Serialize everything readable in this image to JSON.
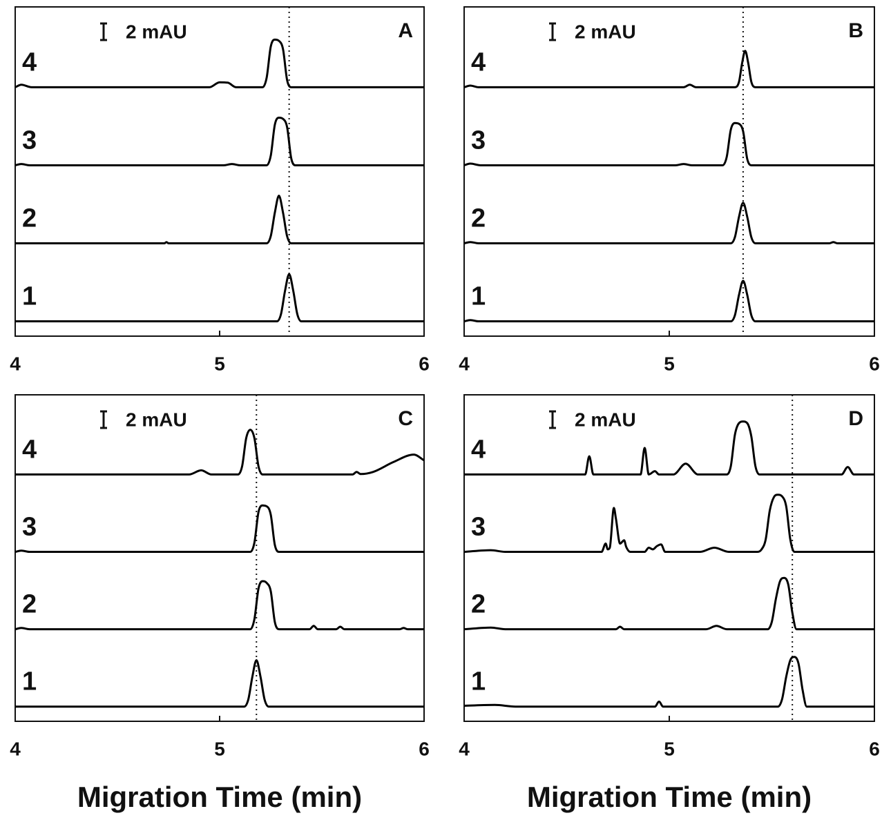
{
  "chart_data": [
    {
      "type": "line",
      "title": "A",
      "xlim": [
        4,
        6
      ],
      "xticks": [
        4,
        5,
        6
      ],
      "reference_x": 5.34,
      "scale_bar": {
        "value": 2,
        "label": "2 mAU"
      },
      "color": "#000000",
      "series": [
        {
          "name": "1",
          "x": [
            4,
            5.28,
            5.3,
            5.32,
            5.34,
            5.36,
            5.38,
            5.4,
            6
          ],
          "values": [
            0,
            0,
            0.86,
            3.7,
            5.7,
            3.7,
            0.86,
            0,
            0
          ]
        },
        {
          "name": "2",
          "x": [
            4,
            4.73,
            4.74,
            4.75,
            5.23,
            5.25,
            5.27,
            5.29,
            5.31,
            5.33,
            5.35,
            6
          ],
          "values": [
            0,
            0,
            0.15,
            0,
            0,
            0.86,
            3.7,
            5.75,
            3.7,
            0.86,
            0,
            0
          ]
        },
        {
          "name": "3",
          "x": [
            4,
            4.03,
            4.07,
            5.02,
            5.06,
            5.1,
            5.23,
            5.25,
            5.27,
            5.29,
            5.31,
            5.33,
            5.35,
            5.37,
            6
          ],
          "values": [
            0,
            0.15,
            0,
            0,
            0.15,
            0,
            0,
            1.15,
            4.9,
            5.75,
            5.6,
            4.6,
            0.86,
            0,
            0
          ]
        },
        {
          "name": "4",
          "x": [
            4,
            4.03,
            4.08,
            4.95,
            5.0,
            5.04,
            5.08,
            5.21,
            5.23,
            5.25,
            5.27,
            5.29,
            5.31,
            5.33,
            5.35,
            6
          ],
          "values": [
            0,
            0.3,
            0,
            0,
            0.6,
            0.55,
            0,
            0,
            1.15,
            4.9,
            5.75,
            5.6,
            4.6,
            0.86,
            0,
            0
          ]
        }
      ]
    },
    {
      "type": "line",
      "title": "B",
      "xlim": [
        4,
        6
      ],
      "xticks": [
        4,
        5,
        6
      ],
      "reference_x": 5.36,
      "scale_bar": {
        "value": 2,
        "label": "2 mAU"
      },
      "color": "#000000",
      "series": [
        {
          "name": "1",
          "x": [
            4,
            4.03,
            4.07,
            5.3,
            5.32,
            5.34,
            5.36,
            5.38,
            5.4,
            5.42,
            6
          ],
          "values": [
            0,
            0.15,
            0,
            0,
            0.74,
            3.2,
            4.9,
            3.2,
            0.74,
            0,
            0
          ]
        },
        {
          "name": "2",
          "x": [
            4,
            4.03,
            4.07,
            5.3,
            5.32,
            5.34,
            5.36,
            5.38,
            5.4,
            5.42,
            5.78,
            5.8,
            5.82,
            6
          ],
          "values": [
            0,
            0.15,
            0,
            0,
            0.74,
            3.2,
            4.9,
            3.2,
            0.74,
            0,
            0,
            0.15,
            0,
            0
          ]
        },
        {
          "name": "3",
          "x": [
            4,
            4.03,
            4.08,
            5.03,
            5.07,
            5.11,
            5.26,
            5.28,
            5.3,
            5.32,
            5.34,
            5.36,
            5.38,
            5.4,
            6
          ],
          "values": [
            0,
            0.2,
            0,
            0,
            0.15,
            0,
            0,
            1.0,
            4.3,
            5.1,
            5.0,
            4.1,
            0.77,
            0,
            0
          ]
        },
        {
          "name": "4",
          "x": [
            4,
            4.03,
            4.07,
            5.07,
            5.1,
            5.13,
            5.32,
            5.34,
            5.355,
            5.37,
            5.385,
            5.4,
            5.42,
            6
          ],
          "values": [
            0,
            0.2,
            0,
            0,
            0.3,
            0,
            0,
            0.66,
            2.9,
            4.4,
            2.9,
            0.66,
            0,
            0
          ]
        }
      ]
    },
    {
      "type": "line",
      "title": "C",
      "xlabel": "Migration Time (min)",
      "xlim": [
        4,
        6
      ],
      "xticks": [
        4,
        5,
        6
      ],
      "reference_x": 5.18,
      "scale_bar": {
        "value": 2,
        "label": "2 mAU"
      },
      "color": "#000000",
      "series": [
        {
          "name": "1",
          "x": [
            4,
            5.12,
            5.14,
            5.16,
            5.18,
            5.2,
            5.22,
            5.24,
            6
          ],
          "values": [
            0,
            0,
            0.84,
            3.6,
            5.6,
            3.6,
            0.84,
            0,
            0
          ]
        },
        {
          "name": "2",
          "x": [
            4,
            4.03,
            4.07,
            5.15,
            5.17,
            5.19,
            5.21,
            5.23,
            5.25,
            5.27,
            5.29,
            5.44,
            5.46,
            5.48,
            5.57,
            5.59,
            5.61,
            5.88,
            5.9,
            5.92,
            6
          ],
          "values": [
            0,
            0.15,
            0,
            0,
            1.2,
            4.9,
            5.8,
            5.6,
            4.6,
            0.87,
            0,
            0,
            0.4,
            0,
            0,
            0.3,
            0,
            0,
            0.15,
            0,
            0
          ]
        },
        {
          "name": "3",
          "x": [
            4,
            4.03,
            4.07,
            5.15,
            5.17,
            5.19,
            5.21,
            5.23,
            5.25,
            5.27,
            5.29,
            6
          ],
          "values": [
            0,
            0.15,
            0,
            0,
            1.1,
            4.8,
            5.6,
            5.5,
            4.5,
            0.84,
            0,
            0
          ]
        },
        {
          "name": "4",
          "x": [
            4,
            4.85,
            4.91,
            4.96,
            5.09,
            5.11,
            5.13,
            5.15,
            5.17,
            5.19,
            5.21,
            5.65,
            5.67,
            5.69,
            5.75,
            5.85,
            5.95,
            6
          ],
          "values": [
            0,
            0,
            0.5,
            0,
            0,
            1.0,
            4.4,
            5.4,
            4.4,
            1.0,
            0,
            0,
            0.3,
            0.05,
            0.3,
            1.5,
            2.4,
            1.7
          ]
        }
      ]
    },
    {
      "type": "line",
      "title": "D",
      "xlabel": "Migration Time (min)",
      "xlim": [
        4,
        6
      ],
      "xticks": [
        4,
        5,
        6
      ],
      "reference_x": 5.6,
      "scale_bar": {
        "value": 2,
        "label": "2 mAU"
      },
      "color": "#000000",
      "series": [
        {
          "name": "1",
          "x": [
            4,
            4.15,
            4.25,
            4.93,
            4.95,
            4.97,
            5.53,
            5.55,
            5.57,
            5.59,
            5.61,
            5.63,
            5.65,
            5.67,
            6
          ],
          "values": [
            0.1,
            0.2,
            0,
            0,
            0.6,
            0,
            0,
            0.9,
            3.6,
            5.6,
            6.0,
            5.2,
            2.0,
            0,
            0
          ]
        },
        {
          "name": "2",
          "x": [
            4,
            4.13,
            4.2,
            4.74,
            4.76,
            4.78,
            5.18,
            5.23,
            5.28,
            5.48,
            5.5,
            5.52,
            5.54,
            5.56,
            5.58,
            5.6,
            5.62,
            6
          ],
          "values": [
            0,
            0.2,
            0,
            0,
            0.3,
            0,
            0,
            0.4,
            0,
            0,
            0.9,
            3.7,
            5.8,
            6.2,
            5.4,
            2.0,
            0,
            0
          ]
        },
        {
          "name": "3",
          "x": [
            4,
            4.13,
            4.2,
            4.67,
            4.69,
            4.7,
            4.71,
            4.73,
            4.74,
            4.76,
            4.78,
            4.79,
            4.81,
            4.88,
            4.9,
            4.92,
            4.94,
            4.96,
            4.98,
            5.15,
            5.22,
            5.29,
            5.43,
            5.45,
            5.47,
            5.49,
            5.51,
            5.53,
            5.55,
            5.57,
            5.59,
            5.61,
            6
          ],
          "values": [
            0,
            0.2,
            0,
            0,
            1.0,
            0.3,
            0.5,
            5.3,
            4.0,
            1.0,
            1.4,
            0.6,
            0,
            0,
            0.5,
            0.3,
            0.7,
            0.9,
            0,
            0,
            0.5,
            0,
            0,
            0.3,
            1.5,
            5.0,
            6.6,
            6.9,
            6.7,
            5.5,
            1.5,
            0,
            0
          ]
        },
        {
          "name": "4",
          "x": [
            4,
            4.59,
            4.61,
            4.63,
            4.86,
            4.88,
            4.9,
            4.93,
            4.95,
            5.02,
            5.08,
            5.14,
            5.28,
            5.3,
            5.32,
            5.34,
            5.36,
            5.38,
            5.4,
            5.42,
            5.44,
            5.84,
            5.87,
            5.9,
            6
          ],
          "values": [
            0,
            0,
            2.2,
            0,
            0,
            3.2,
            0,
            0.4,
            0,
            0,
            1.3,
            0,
            0,
            1.0,
            4.8,
            6.2,
            6.4,
            6.2,
            4.6,
            1.0,
            0,
            0,
            0.9,
            0,
            0
          ]
        }
      ]
    }
  ]
}
